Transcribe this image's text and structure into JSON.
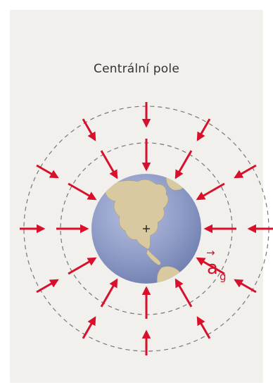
{
  "title": "Centrální pole",
  "vector_label": {
    "symbol": "a",
    "subscript": "g",
    "arrow": "→"
  },
  "colors": {
    "paper": "#f1f0ec",
    "arrow": "#d8102c",
    "dashed_circle": "#777777",
    "ocean": "#8f9cc7",
    "land": "#d9c9a0",
    "title": "#333333"
  },
  "icons": {
    "center": "plus-marker",
    "globe": "earth-globe"
  },
  "field": {
    "arrow_count": 12,
    "ring_count": 2,
    "direction": "toward-center"
  }
}
